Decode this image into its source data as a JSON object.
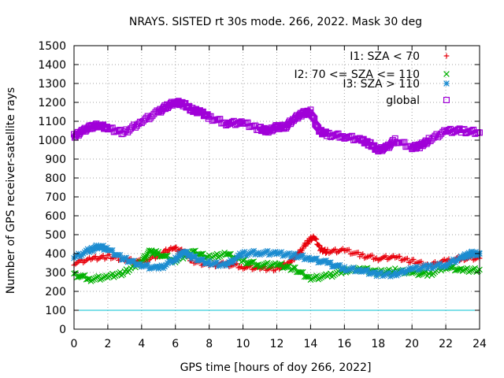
{
  "chart_data": {
    "type": "scatter",
    "title": "NRAYS. SISTED rt 30s mode. 266, 2022. Mask 30 deg",
    "xlabel": "GPS time [hours of doy 266, 2022]",
    "ylabel": "Number of GPS receiver-satellite rays",
    "xlim": [
      0,
      24
    ],
    "ylim": [
      0,
      1500
    ],
    "xticks": [
      0,
      2,
      4,
      6,
      8,
      10,
      12,
      14,
      16,
      18,
      20,
      22,
      24
    ],
    "yticks": [
      0,
      100,
      200,
      300,
      400,
      500,
      600,
      700,
      800,
      900,
      1000,
      1100,
      1200,
      1300,
      1400,
      1500
    ],
    "grid": true,
    "legend_position": "top-right",
    "reference_line": {
      "y": 100,
      "color": "#00c0d0"
    },
    "series": [
      {
        "name": "I1: SZA < 70",
        "marker": "+",
        "color": "#e8000b",
        "x": [
          0,
          1,
          2,
          3,
          4,
          5,
          5.8,
          6.5,
          7,
          8,
          9,
          10,
          11,
          12,
          12.8,
          13.3,
          13.8,
          14.2,
          14.6,
          15,
          16,
          17,
          18,
          19,
          20,
          21,
          22,
          23,
          24
        ],
        "y": [
          350,
          370,
          385,
          370,
          355,
          390,
          430,
          410,
          360,
          340,
          345,
          330,
          320,
          320,
          360,
          400,
          460,
          490,
          420,
          410,
          420,
          390,
          375,
          380,
          360,
          340,
          360,
          375,
          375
        ]
      },
      {
        "name": "I2: 70 <= SZA <= 110",
        "marker": "x",
        "color": "#00b000",
        "x": [
          0,
          1,
          2,
          3,
          4,
          4.5,
          5,
          6,
          7,
          8,
          9,
          10,
          11,
          12,
          13,
          14,
          15,
          16,
          17,
          18,
          19,
          20,
          21,
          22,
          23,
          24
        ],
        "y": [
          290,
          265,
          275,
          300,
          360,
          410,
          400,
          360,
          410,
          380,
          400,
          360,
          340,
          340,
          320,
          270,
          280,
          310,
          320,
          300,
          310,
          300,
          290,
          330,
          310,
          315
        ]
      },
      {
        "name": "I3: SZA > 110",
        "marker": "*",
        "color": "#1c8cd0",
        "x": [
          0,
          1,
          1.5,
          2,
          3,
          4,
          5,
          6,
          6.5,
          7,
          8,
          9,
          10,
          11,
          12,
          13,
          14,
          15,
          16,
          17,
          18,
          19,
          20,
          21,
          22,
          23,
          23.5,
          24
        ],
        "y": [
          380,
          420,
          440,
          420,
          370,
          340,
          320,
          370,
          410,
          380,
          350,
          340,
          400,
          405,
          400,
          390,
          375,
          350,
          320,
          310,
          290,
          290,
          320,
          330,
          340,
          380,
          400,
          400
        ]
      },
      {
        "name": "global",
        "marker": "square",
        "color": "#a000d8",
        "x": [
          0,
          0.5,
          1,
          1.5,
          2,
          3,
          4,
          5,
          5.5,
          6,
          6.5,
          7,
          7.5,
          8,
          9,
          10,
          11,
          11.5,
          12,
          12.5,
          13,
          13.5,
          14,
          14.5,
          15,
          16,
          17,
          17.5,
          18,
          18.5,
          19,
          20,
          20.5,
          21,
          22,
          23,
          24
        ],
        "y": [
          1020,
          1050,
          1070,
          1080,
          1060,
          1040,
          1100,
          1150,
          1180,
          1200,
          1190,
          1160,
          1150,
          1120,
          1090,
          1090,
          1060,
          1050,
          1070,
          1070,
          1110,
          1140,
          1150,
          1050,
          1030,
          1020,
          1000,
          980,
          950,
          960,
          1000,
          960,
          970,
          1000,
          1050,
          1050,
          1040
        ]
      }
    ]
  }
}
